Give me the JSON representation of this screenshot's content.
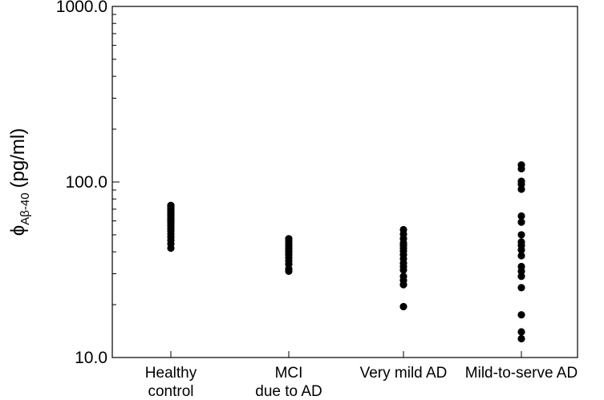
{
  "chart_data": {
    "type": "scatter",
    "yscale": "log",
    "ylim": [
      10,
      1000
    ],
    "yticks": [
      10,
      100,
      1000
    ],
    "ytick_labels": [
      "10.0",
      "100.0",
      "1000.0"
    ],
    "ylabel": {
      "symbol": "ϕ",
      "subscript": "Aβ-40",
      "unit": "(pg/ml)"
    },
    "xlabel": "",
    "grid": false,
    "categories": [
      [
        "Healthy",
        "control"
      ],
      [
        "MCI",
        "due to AD"
      ],
      [
        "Very mild AD"
      ],
      [
        "Mild-to-serve AD"
      ]
    ],
    "series": [
      {
        "values": [
          42.0,
          44.5,
          46.5,
          48.5,
          50.5,
          52.5,
          54.5,
          56.5,
          58.5,
          60.0,
          61.5,
          63.0,
          64.5,
          66.0,
          67.5,
          69.0,
          70.5,
          72.0,
          73.5
        ]
      },
      {
        "values": [
          31.0,
          32.0,
          34.0,
          35.5,
          37.0,
          38.5,
          40.0,
          41.5,
          43.0,
          44.5,
          46.0,
          47.5
        ]
      },
      {
        "values": [
          19.5,
          26.0,
          27.5,
          29.0,
          31.5,
          33.0,
          34.5,
          36.5,
          38.5,
          40.5,
          42.0,
          43.5,
          45.0,
          47.5,
          50.5,
          53.5
        ]
      },
      {
        "values": [
          12.8,
          14.0,
          17.5,
          25.0,
          29.0,
          31.0,
          33.0,
          38.0,
          41.0,
          43.5,
          45.5,
          50.0,
          59.0,
          64.0,
          91.0,
          97.0,
          101.0,
          119.0,
          125.0
        ]
      }
    ]
  }
}
